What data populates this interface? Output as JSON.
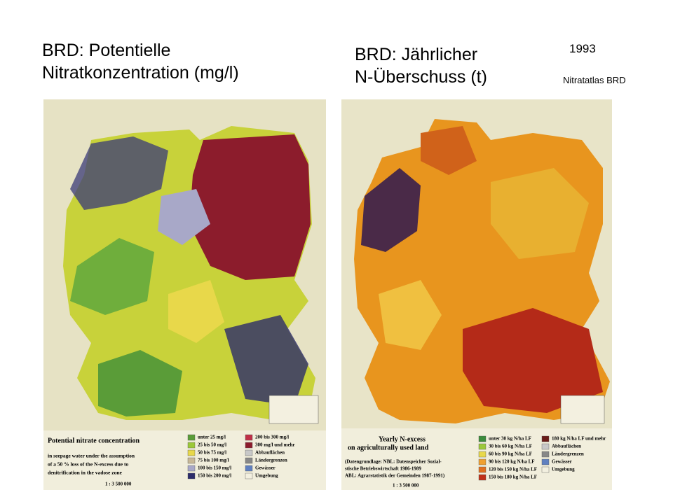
{
  "header": {
    "title_left": [
      "BRD: Potentielle",
      "Nitratkonzentration  (mg/l)"
    ],
    "title_right": [
      "BRD: Jährlicher",
      "N-Überschuss (t)"
    ],
    "year": "1993",
    "source": "Nitratatlas BRD"
  },
  "maps": [
    {
      "caption": "Potential nitrate concentration",
      "subcaption": [
        "in seepage water under the assumption",
        "of a 50 % loss of the N-excess due to",
        "denitrification in the vadose zone"
      ],
      "legend": [
        "unter 25 mg/l",
        "25 bis 50 mg/l",
        "50 bis 75 mg/l",
        "75 bis 100 mg/l",
        "100 bis 150 mg/l",
        "150 bis 200 mg/l",
        "200 bis 300 mg/l",
        "300 mg/l und mehr",
        "Abbauflächen",
        "Ländergrenzen",
        "Gewässer",
        "Umgebung"
      ],
      "scale": "1 : 3 500 000"
    },
    {
      "caption": [
        "Yearly N-excess",
        "on agriculturally used land"
      ],
      "subcaption": [
        "(Datengrundlage: NBL: Datenspeicher Sozial-",
        "stische Betriebswirtschaft 1986-1989",
        "ABL: Agrarstatistik der Gemeinden 1987-1991)"
      ],
      "legend": [
        "unter 30 kg N/ha LF",
        "30 bis 60 kg N/ha LF",
        "60 bis 90 kg N/ha LF",
        "90 bis 120 kg N/ha LF",
        "120 bis 150 kg N/ha LF",
        "150 bis 180 kg N/ha LF",
        "180 kg N/ha LF und mehr",
        "Abbauflächen",
        "Ländergrenzen",
        "Gewässer",
        "Umgebung"
      ],
      "scale": "1 : 3 500 000"
    }
  ]
}
